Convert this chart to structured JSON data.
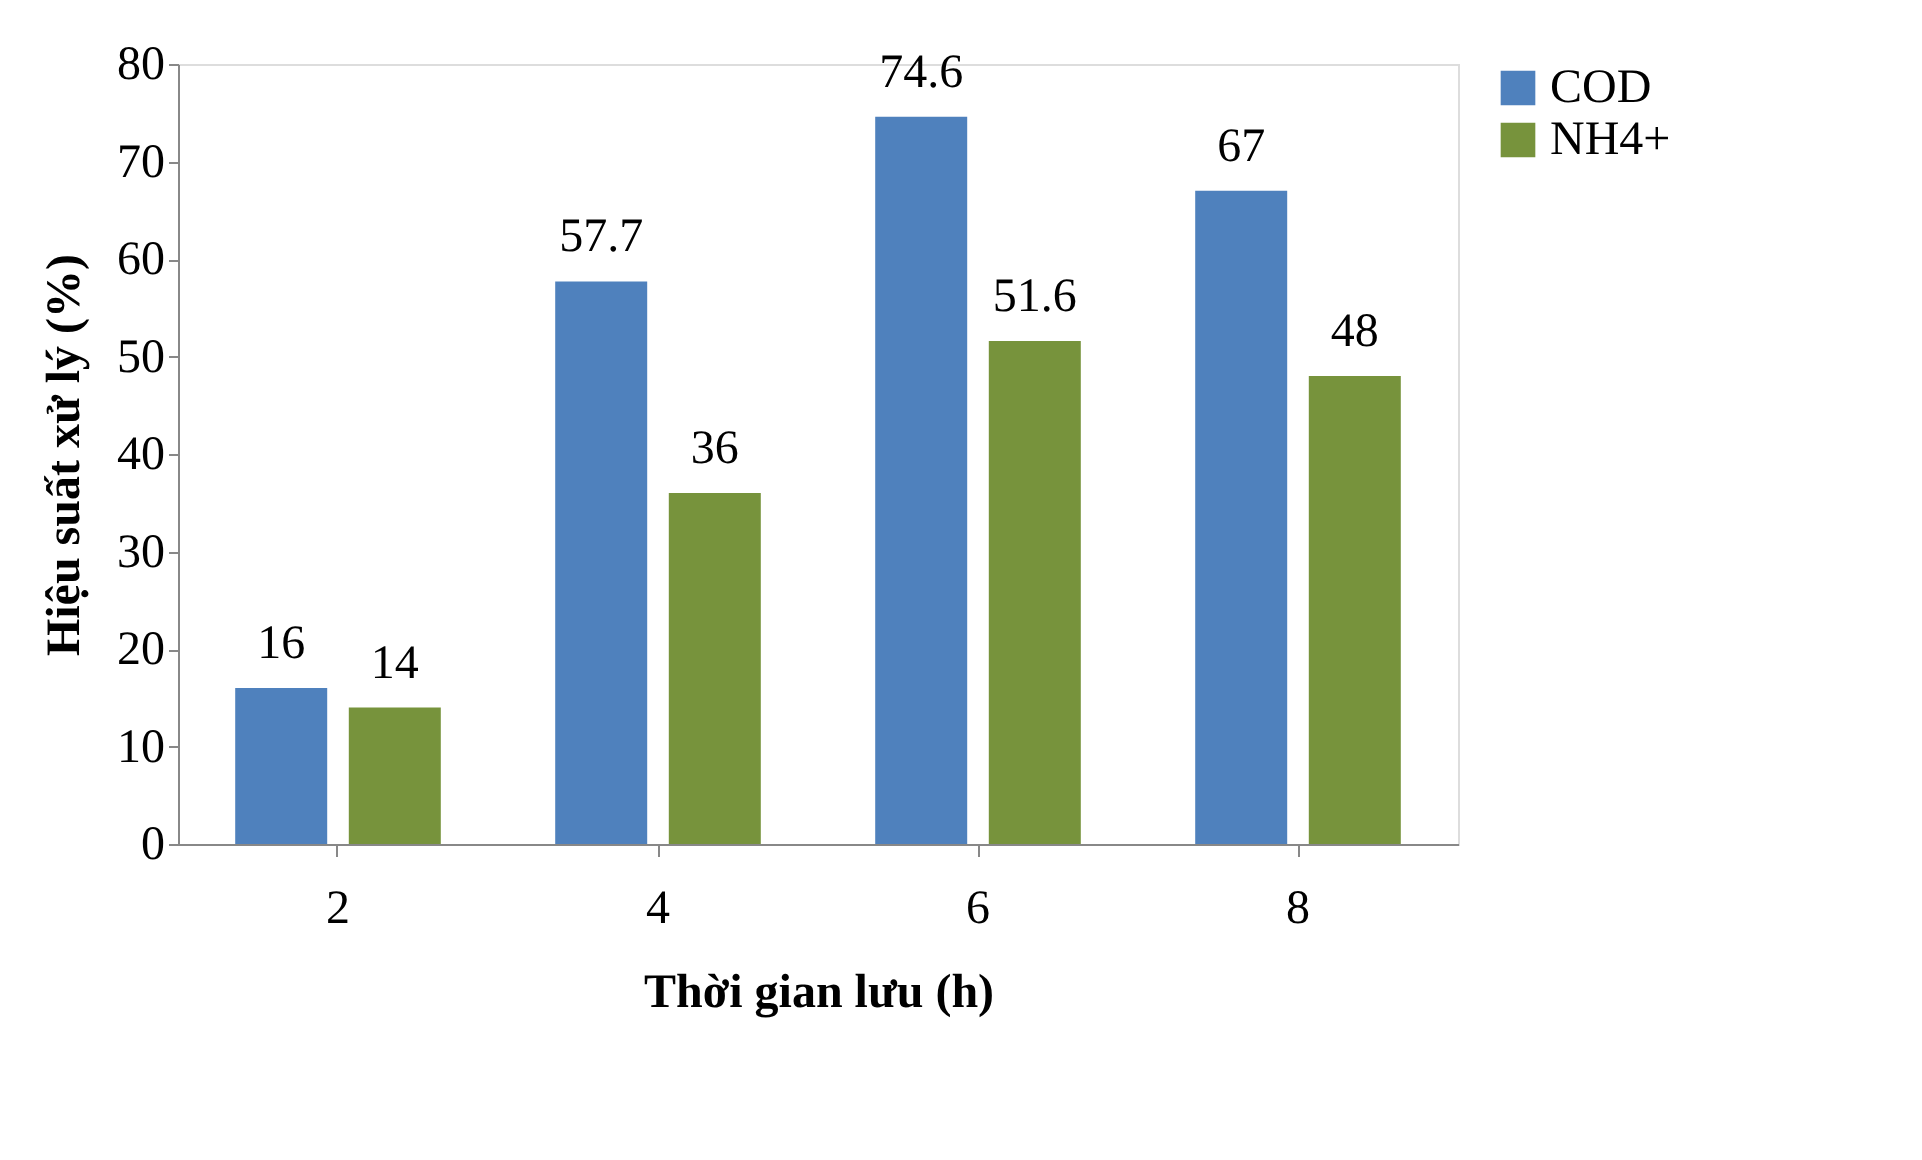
{
  "chart_data": {
    "type": "bar",
    "xlabel": "Thời gian lưu (h)",
    "ylabel": "Hiệu suất xử lý (%)",
    "categories": [
      "2",
      "4",
      "6",
      "8"
    ],
    "series": [
      {
        "name": "COD",
        "color": "#4f81bd",
        "values": [
          16,
          57.7,
          74.6,
          67
        ]
      },
      {
        "name": "NH4+",
        "color": "#77933c",
        "values": [
          14,
          36,
          51.6,
          48
        ]
      }
    ],
    "ylim": [
      0,
      80
    ],
    "yticks": [
      0,
      10,
      20,
      30,
      40,
      50,
      60,
      70,
      80
    ],
    "grid": false,
    "legend": "right",
    "data_labels": true
  }
}
